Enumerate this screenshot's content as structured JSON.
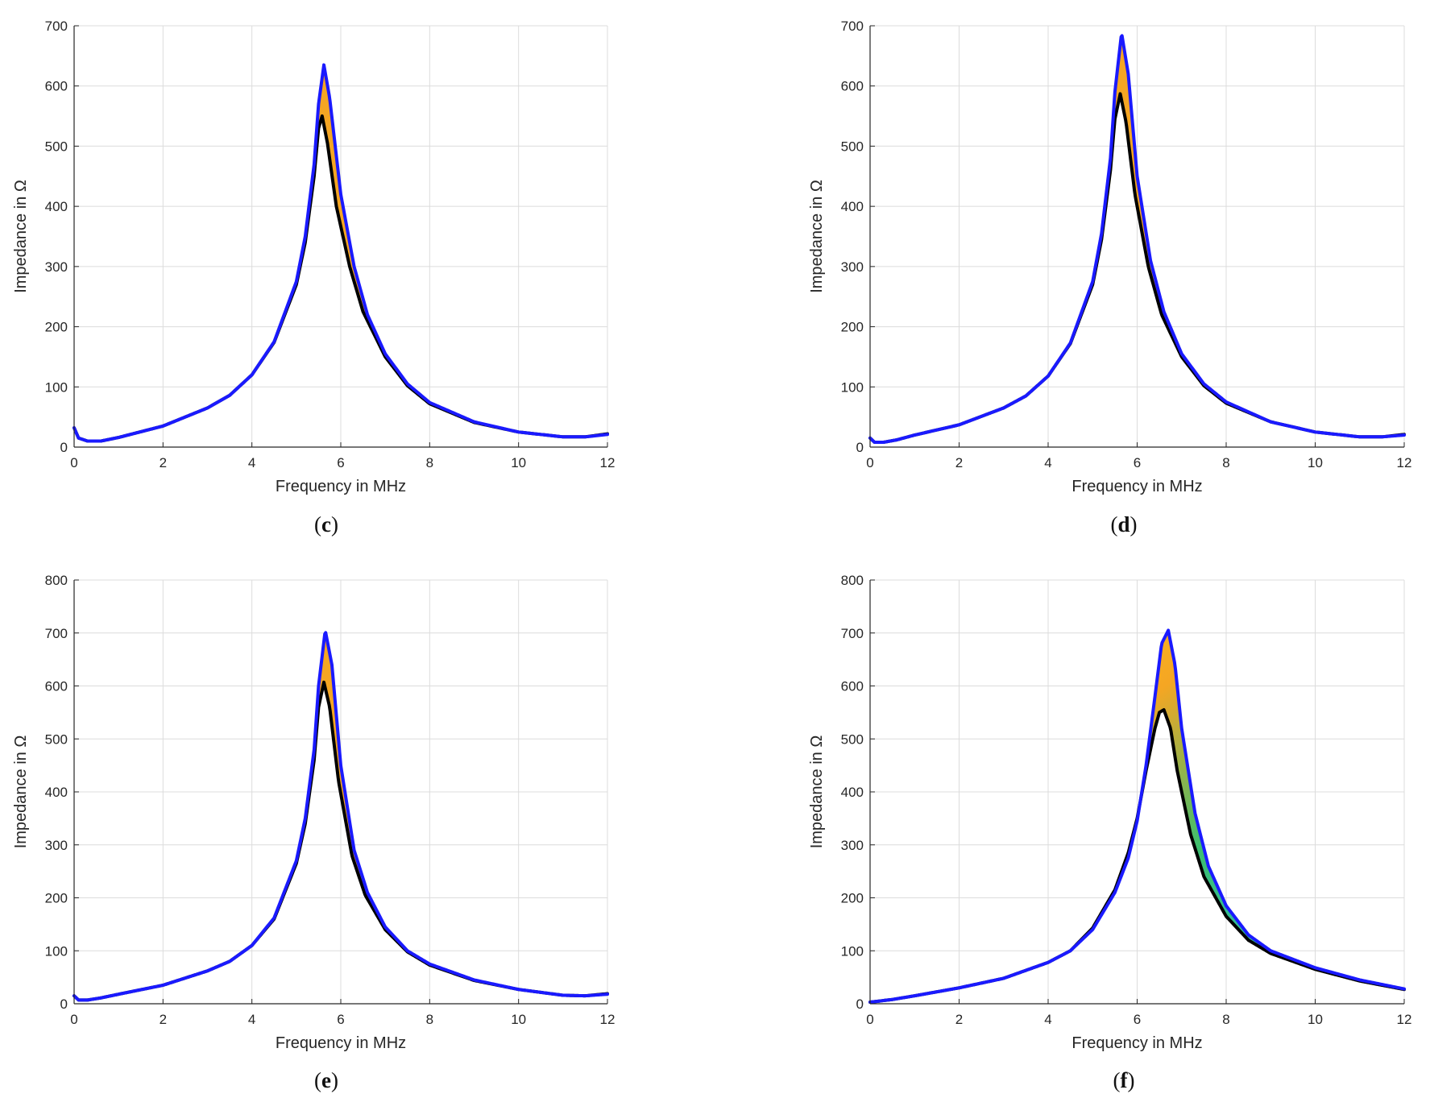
{
  "figure": {
    "panels": [
      {
        "id": "c",
        "caption_open": "(",
        "caption_letter": "c",
        "caption_close": ")"
      },
      {
        "id": "d",
        "caption_open": "(",
        "caption_letter": "d",
        "caption_close": ")"
      },
      {
        "id": "e",
        "caption_open": "(",
        "caption_letter": "e",
        "caption_close": ")"
      },
      {
        "id": "f",
        "caption_open": "(",
        "caption_letter": "f",
        "caption_close": ")"
      }
    ]
  },
  "colors": {
    "upper_curve": "#1a1aff",
    "lower_curve": "#000000",
    "fill_orange": "#f5a623",
    "fill_yellow": "#ffd21a",
    "fill_green": "#3cbf6e",
    "fill_cyan": "#1fb5e0",
    "grid": "#dcdcdc",
    "axis": "#262626"
  },
  "chart_data": [
    {
      "panel": "c",
      "type": "line",
      "title": "",
      "xlabel": "Frequency in MHz",
      "ylabel": "Impedance in Ω",
      "xlim": [
        0,
        12
      ],
      "ylim": [
        0,
        700
      ],
      "xticks": [
        0,
        2,
        4,
        6,
        8,
        10,
        12
      ],
      "yticks": [
        0,
        100,
        200,
        300,
        400,
        500,
        600,
        700
      ],
      "grid": true,
      "fill_between": "orange",
      "series": [
        {
          "name": "upper",
          "color": "blue",
          "x": [
            0,
            0.1,
            0.3,
            0.6,
            1,
            2,
            3,
            3.5,
            4,
            4.5,
            5,
            5.2,
            5.4,
            5.5,
            5.62,
            5.75,
            6,
            6.3,
            6.6,
            7,
            7.5,
            8,
            9,
            10,
            11,
            11.5,
            12
          ],
          "y": [
            32,
            15,
            10,
            10,
            16,
            35,
            65,
            86,
            120,
            175,
            275,
            350,
            470,
            570,
            635,
            580,
            420,
            300,
            220,
            155,
            105,
            74,
            42,
            25,
            17,
            17,
            21
          ]
        },
        {
          "name": "lower",
          "color": "black",
          "x": [
            0,
            0.1,
            0.3,
            0.6,
            1,
            2,
            3,
            3.5,
            4,
            4.5,
            5,
            5.2,
            5.4,
            5.5,
            5.58,
            5.7,
            5.9,
            6.2,
            6.5,
            7,
            7.5,
            8,
            9,
            10,
            11,
            11.5,
            12
          ],
          "y": [
            32,
            15,
            10,
            10,
            16,
            35,
            65,
            86,
            120,
            174,
            270,
            340,
            450,
            530,
            550,
            505,
            400,
            300,
            225,
            150,
            102,
            72,
            41,
            25,
            17,
            17,
            22
          ]
        }
      ]
    },
    {
      "panel": "d",
      "type": "line",
      "title": "",
      "xlabel": "Frequency in MHz",
      "ylabel": "Impedance in Ω",
      "xlim": [
        0,
        12
      ],
      "ylim": [
        0,
        700
      ],
      "xticks": [
        0,
        2,
        4,
        6,
        8,
        10,
        12
      ],
      "yticks": [
        0,
        100,
        200,
        300,
        400,
        500,
        600,
        700
      ],
      "grid": true,
      "fill_between": "orange",
      "series": [
        {
          "name": "upper",
          "color": "blue",
          "x": [
            0,
            0.1,
            0.3,
            0.6,
            1,
            2,
            3,
            3.5,
            4,
            4.5,
            5,
            5.2,
            5.4,
            5.5,
            5.65,
            5.8,
            6,
            6.3,
            6.6,
            7,
            7.5,
            8,
            9,
            10,
            11,
            11.5,
            12
          ],
          "y": [
            15,
            8,
            8,
            12,
            20,
            37,
            65,
            85,
            118,
            173,
            275,
            355,
            480,
            590,
            688,
            620,
            450,
            310,
            225,
            155,
            105,
            75,
            42,
            25,
            17,
            17,
            20
          ]
        },
        {
          "name": "lower",
          "color": "black",
          "x": [
            0,
            0.1,
            0.3,
            0.6,
            1,
            2,
            3,
            3.5,
            4,
            4.5,
            5,
            5.2,
            5.4,
            5.5,
            5.62,
            5.75,
            5.95,
            6.25,
            6.55,
            7,
            7.5,
            8,
            9,
            10,
            11,
            11.5,
            12
          ],
          "y": [
            15,
            8,
            8,
            12,
            20,
            37,
            65,
            85,
            118,
            172,
            270,
            345,
            460,
            545,
            587,
            540,
            420,
            300,
            220,
            150,
            102,
            73,
            42,
            25,
            17,
            17,
            21
          ]
        }
      ]
    },
    {
      "panel": "e",
      "type": "line",
      "title": "",
      "xlabel": "Frequency in MHz",
      "ylabel": "Impedance in Ω",
      "xlim": [
        0,
        12
      ],
      "ylim": [
        0,
        800
      ],
      "xticks": [
        0,
        2,
        4,
        6,
        8,
        10,
        12
      ],
      "yticks": [
        0,
        100,
        200,
        300,
        400,
        500,
        600,
        700,
        800
      ],
      "grid": true,
      "fill_between": "orange",
      "series": [
        {
          "name": "upper",
          "color": "blue",
          "x": [
            0,
            0.1,
            0.3,
            0.6,
            1,
            2,
            3,
            3.5,
            4,
            4.5,
            5,
            5.2,
            5.4,
            5.5,
            5.65,
            5.8,
            6,
            6.3,
            6.6,
            7,
            7.5,
            8,
            9,
            10,
            11,
            11.5,
            12
          ],
          "y": [
            15,
            7,
            7,
            11,
            18,
            35,
            62,
            80,
            110,
            162,
            270,
            350,
            480,
            600,
            705,
            640,
            450,
            290,
            210,
            145,
            100,
            75,
            45,
            27,
            16,
            15,
            18
          ]
        },
        {
          "name": "lower",
          "color": "black",
          "x": [
            0,
            0.1,
            0.3,
            0.6,
            1,
            2,
            3,
            3.5,
            4,
            4.5,
            5,
            5.2,
            5.4,
            5.5,
            5.62,
            5.75,
            5.95,
            6.25,
            6.55,
            7,
            7.5,
            8,
            9,
            10,
            11,
            11.5,
            12
          ],
          "y": [
            15,
            7,
            7,
            11,
            18,
            35,
            62,
            80,
            110,
            160,
            265,
            340,
            460,
            560,
            607,
            560,
            420,
            280,
            205,
            140,
            98,
            73,
            44,
            27,
            16,
            15,
            19
          ]
        }
      ]
    },
    {
      "panel": "f",
      "type": "line",
      "title": "",
      "xlabel": "Frequency in MHz",
      "ylabel": "Impedance in Ω",
      "xlim": [
        0,
        12
      ],
      "ylim": [
        0,
        800
      ],
      "xticks": [
        0,
        2,
        4,
        6,
        8,
        10,
        12
      ],
      "yticks": [
        0,
        100,
        200,
        300,
        400,
        500,
        600,
        700,
        800
      ],
      "grid": true,
      "fill_between": "gradient",
      "series": [
        {
          "name": "upper",
          "color": "blue",
          "x": [
            0,
            0.5,
            1,
            2,
            3,
            4,
            4.5,
            5,
            5.5,
            5.8,
            6,
            6.2,
            6.4,
            6.55,
            6.7,
            6.85,
            7,
            7.3,
            7.6,
            8,
            8.5,
            9,
            10,
            11,
            12
          ],
          "y": [
            3,
            8,
            15,
            30,
            48,
            78,
            100,
            140,
            210,
            275,
            345,
            450,
            580,
            680,
            705,
            640,
            520,
            360,
            260,
            185,
            130,
            100,
            68,
            45,
            28
          ]
        },
        {
          "name": "lower",
          "color": "black",
          "x": [
            0,
            0.5,
            1,
            2,
            3,
            4,
            4.5,
            5,
            5.5,
            5.8,
            6,
            6.2,
            6.4,
            6.5,
            6.6,
            6.75,
            6.9,
            7.2,
            7.5,
            8,
            8.5,
            9,
            10,
            11,
            12
          ],
          "y": [
            3,
            8,
            15,
            30,
            48,
            78,
            100,
            143,
            215,
            285,
            350,
            440,
            520,
            550,
            555,
            520,
            440,
            320,
            240,
            165,
            120,
            95,
            65,
            43,
            27
          ]
        }
      ]
    }
  ]
}
